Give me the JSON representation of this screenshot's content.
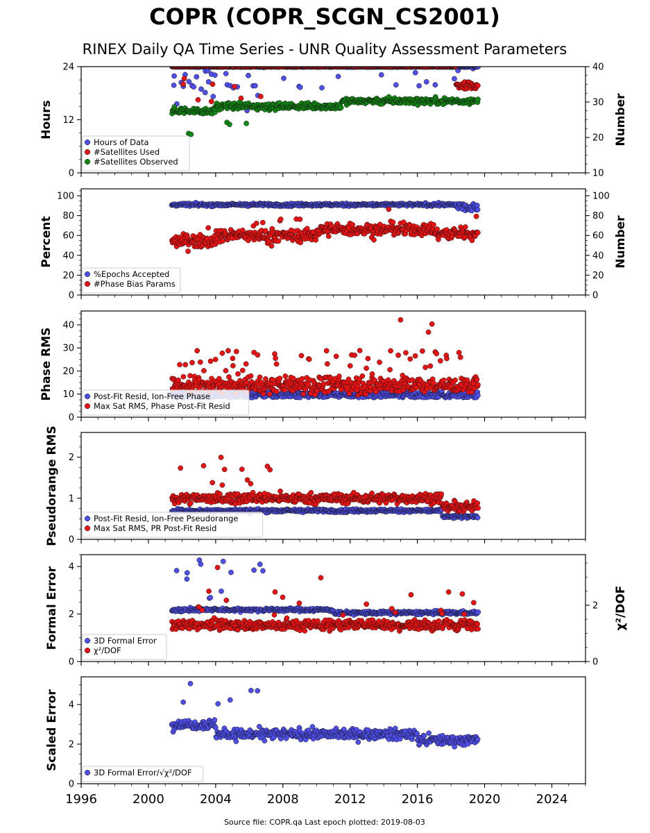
{
  "figure": {
    "title": "COPR (COPR_SCGN_CS2001)",
    "subtitle": "RINEX Daily QA Time Series - UNR Quality Assessment Parameters",
    "footer": "Source file: COPR.qa Last epoch plotted: 2019-08-03"
  },
  "chart_data": [
    {
      "type": "scatter",
      "ylabel": "Hours",
      "y2label": "Number",
      "xlim": [
        1996,
        2026
      ],
      "ylim": [
        0,
        24
      ],
      "y2lim": [
        10,
        40
      ],
      "yticks": [
        0,
        12,
        24
      ],
      "y2ticks": [
        10,
        20,
        30,
        40
      ],
      "x_ticks": [
        "1996",
        "2000",
        "2004",
        "2008",
        "2012",
        "2016",
        "2020",
        "2024"
      ],
      "show_x_ticklabels": false,
      "legend_position": "lower-left",
      "series": [
        {
          "name": "Hours of Data",
          "color": "#4f4ff0",
          "axis": "left",
          "generator": "hours",
          "x_range": [
            2001.4,
            2019.6
          ]
        },
        {
          "name": "#Satellites Used",
          "color": "#ee1111",
          "axis": "right",
          "generator": "satused",
          "x_range": [
            2001.4,
            2019.6
          ]
        },
        {
          "name": "#Satellites Observed",
          "color": "#118811",
          "axis": "right",
          "generator": "satobs",
          "x_range": [
            2001.4,
            2019.6
          ]
        }
      ]
    },
    {
      "type": "scatter",
      "ylabel": "Percent",
      "y2label": "Number",
      "xlim": [
        1996,
        2026
      ],
      "ylim": [
        0,
        107
      ],
      "y2lim": [
        0,
        107
      ],
      "yticks": [
        0,
        20,
        40,
        60,
        80,
        100
      ],
      "y2ticks": [
        0,
        20,
        40,
        60,
        80,
        100
      ],
      "x_ticks": [
        "1996",
        "2000",
        "2004",
        "2008",
        "2012",
        "2016",
        "2020",
        "2024"
      ],
      "show_x_ticklabels": false,
      "legend_position": "lower-left",
      "series": [
        {
          "name": "%Epochs Accepted",
          "color": "#4f4ff0",
          "axis": "left",
          "generator": "epochs",
          "x_range": [
            2001.4,
            2019.6
          ]
        },
        {
          "name": "#Phase Bias Params",
          "color": "#ee1111",
          "axis": "right",
          "generator": "phasebias",
          "x_range": [
            2001.4,
            2019.6
          ]
        }
      ]
    },
    {
      "type": "scatter",
      "ylabel": "Phase RMS",
      "xlim": [
        1996,
        2026
      ],
      "ylim": [
        0,
        46
      ],
      "yticks": [
        0,
        10,
        20,
        30,
        40
      ],
      "x_ticks": [
        "1996",
        "2000",
        "2004",
        "2008",
        "2012",
        "2016",
        "2020",
        "2024"
      ],
      "show_x_ticklabels": false,
      "legend_position": "lower-left",
      "series": [
        {
          "name": "Post-Fit Resid, Ion-Free Phase",
          "color": "#4f4ff0",
          "axis": "left",
          "generator": "phaseresid",
          "x_range": [
            2001.4,
            2019.6
          ]
        },
        {
          "name": "Max Sat RMS, Phase Post-Fit Resid",
          "color": "#ee1111",
          "axis": "left",
          "generator": "phasemax",
          "x_range": [
            2001.4,
            2019.6
          ]
        }
      ]
    },
    {
      "type": "scatter",
      "ylabel": "Pseudorange RMS",
      "xlim": [
        1996,
        2026
      ],
      "ylim": [
        0,
        2.6
      ],
      "yticks": [
        0,
        1,
        2
      ],
      "x_ticks": [
        "1996",
        "2000",
        "2004",
        "2008",
        "2012",
        "2016",
        "2020",
        "2024"
      ],
      "show_x_ticklabels": false,
      "legend_position": "lower-left",
      "series": [
        {
          "name": "Post-Fit Resid, Ion-Free Pseudorange",
          "color": "#4f4ff0",
          "axis": "left",
          "generator": "prresid",
          "x_range": [
            2001.4,
            2019.6
          ]
        },
        {
          "name": "Max Sat RMS, PR Post-Fit Resid",
          "color": "#ee1111",
          "axis": "left",
          "generator": "prmax",
          "x_range": [
            2001.4,
            2019.6
          ]
        }
      ]
    },
    {
      "type": "scatter",
      "ylabel": "Formal Error",
      "y2label": "χ²/DOF",
      "xlim": [
        1996,
        2026
      ],
      "ylim": [
        0,
        4.5
      ],
      "y2lim": [
        0,
        3.8
      ],
      "yticks": [
        0,
        2,
        4
      ],
      "y2ticks": [
        0,
        2
      ],
      "x_ticks": [
        "1996",
        "2000",
        "2004",
        "2008",
        "2012",
        "2016",
        "2020",
        "2024"
      ],
      "show_x_ticklabels": false,
      "legend_position": "lower-left",
      "series": [
        {
          "name": "3D Formal Error",
          "color": "#4f4ff0",
          "axis": "left",
          "generator": "formal",
          "x_range": [
            2001.4,
            2019.6
          ]
        },
        {
          "name": "χ²/DOF",
          "color": "#ee1111",
          "axis": "right",
          "generator": "chi2",
          "x_range": [
            2001.4,
            2019.6
          ]
        }
      ]
    },
    {
      "type": "scatter",
      "ylabel": "Scaled Error",
      "xlim": [
        1996,
        2026
      ],
      "ylim": [
        0,
        5.4
      ],
      "yticks": [
        0,
        2,
        4
      ],
      "x_ticks": [
        "1996",
        "2000",
        "2004",
        "2008",
        "2012",
        "2016",
        "2020",
        "2024"
      ],
      "show_x_ticklabels": true,
      "legend_position": "lower-left",
      "series": [
        {
          "name": "3D Formal Error/√χ²/DOF",
          "color": "#4f4ff0",
          "axis": "left",
          "generator": "scaled",
          "x_range": [
            2001.4,
            2019.6
          ]
        }
      ]
    }
  ]
}
